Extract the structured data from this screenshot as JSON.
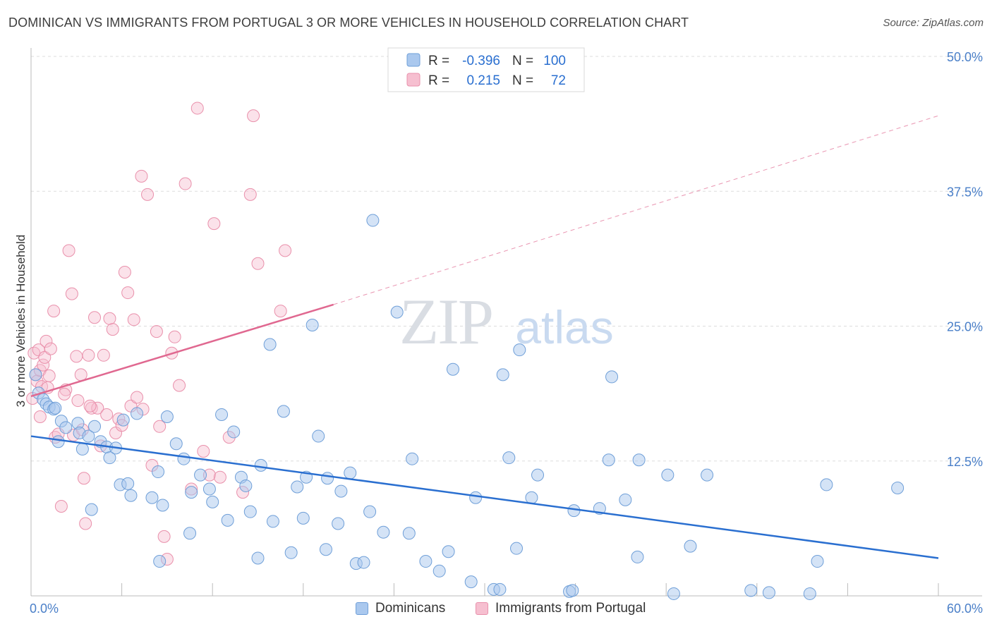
{
  "title": "DOMINICAN VS IMMIGRANTS FROM PORTUGAL 3 OR MORE VEHICLES IN HOUSEHOLD CORRELATION CHART",
  "source": "Source: ZipAtlas.com",
  "colors": {
    "blue_fill": "#aac8ee",
    "blue_stroke": "#6f9fd8",
    "blue_line": "#2a6fd0",
    "pink_fill": "#f6bfd0",
    "pink_stroke": "#e990ab",
    "pink_line": "#e06890",
    "axis_label": "#4a7fc8",
    "grid": "#dddddd"
  },
  "legend": {
    "r_label": "R =",
    "n_label": "N =",
    "rows": [
      {
        "series": "Dominicans",
        "r": "-0.396",
        "n": "100"
      },
      {
        "series": "Immigrants from Portugal",
        "r": "0.215",
        "n": "72"
      }
    ]
  },
  "watermark": {
    "zip": "ZIP",
    "atlas": "atlas"
  },
  "chart_data": {
    "type": "scatter",
    "title": "DOMINICAN VS IMMIGRANTS FROM PORTUGAL 3 OR MORE VEHICLES IN HOUSEHOLD CORRELATION CHART",
    "xlabel": "",
    "ylabel": "3 or more Vehicles in Household",
    "xlim": [
      0,
      60
    ],
    "ylim": [
      0,
      50
    ],
    "x_tick_labels": [
      "0.0%",
      "60.0%"
    ],
    "y_ticks": [
      12.5,
      25.0,
      37.5,
      50.0
    ],
    "y_tick_labels": [
      "12.5%",
      "25.0%",
      "37.5%",
      "50.0%"
    ],
    "series": [
      {
        "name": "Dominicans",
        "trend": {
          "x": [
            0,
            60
          ],
          "y": [
            14.8,
            3.5
          ],
          "style": "solid"
        },
        "points": [
          [
            0.3,
            20.5
          ],
          [
            0.5,
            18.8
          ],
          [
            0.8,
            18.2
          ],
          [
            1.0,
            17.8
          ],
          [
            1.2,
            17.5
          ],
          [
            1.5,
            17.3
          ],
          [
            1.6,
            17.4
          ],
          [
            1.8,
            14.3
          ],
          [
            2.0,
            16.2
          ],
          [
            2.3,
            15.6
          ],
          [
            3.1,
            16.0
          ],
          [
            3.2,
            15.1
          ],
          [
            3.4,
            13.6
          ],
          [
            3.8,
            14.8
          ],
          [
            4.2,
            15.7
          ],
          [
            4.6,
            14.3
          ],
          [
            5.0,
            13.8
          ],
          [
            5.2,
            12.8
          ],
          [
            5.6,
            13.7
          ],
          [
            5.9,
            10.3
          ],
          [
            6.1,
            16.3
          ],
          [
            6.4,
            10.4
          ],
          [
            6.6,
            9.3
          ],
          [
            7.0,
            16.9
          ],
          [
            8.0,
            9.1
          ],
          [
            8.4,
            11.5
          ],
          [
            8.7,
            8.4
          ],
          [
            9.0,
            16.6
          ],
          [
            9.6,
            14.1
          ],
          [
            10.1,
            12.7
          ],
          [
            10.6,
            9.6
          ],
          [
            11.2,
            11.2
          ],
          [
            11.8,
            9.9
          ],
          [
            12.6,
            16.8
          ],
          [
            13.4,
            15.2
          ],
          [
            13.9,
            11.0
          ],
          [
            14.2,
            10.2
          ],
          [
            15.2,
            12.1
          ],
          [
            15.8,
            23.3
          ],
          [
            16.7,
            17.1
          ],
          [
            17.6,
            10.1
          ],
          [
            18.2,
            11.0
          ],
          [
            18.6,
            25.1
          ],
          [
            19.0,
            14.8
          ],
          [
            19.6,
            10.9
          ],
          [
            20.5,
            9.7
          ],
          [
            21.1,
            11.4
          ],
          [
            22.4,
            7.8
          ],
          [
            22.6,
            34.8
          ],
          [
            23.3,
            5.9
          ],
          [
            24.2,
            26.3
          ],
          [
            25.2,
            12.7
          ],
          [
            26.1,
            3.2
          ],
          [
            27.6,
            4.1
          ],
          [
            27.9,
            21.0
          ],
          [
            29.1,
            1.3
          ],
          [
            29.4,
            9.1
          ],
          [
            30.6,
            0.6
          ],
          [
            31.0,
            0.6
          ],
          [
            31.2,
            20.5
          ],
          [
            31.6,
            12.8
          ],
          [
            32.1,
            4.4
          ],
          [
            32.3,
            22.8
          ],
          [
            33.1,
            9.1
          ],
          [
            33.5,
            11.2
          ],
          [
            35.6,
            0.4
          ],
          [
            35.8,
            0.5
          ],
          [
            35.9,
            7.9
          ],
          [
            37.6,
            8.1
          ],
          [
            38.2,
            12.6
          ],
          [
            38.4,
            20.3
          ],
          [
            39.3,
            8.9
          ],
          [
            40.1,
            3.6
          ],
          [
            40.2,
            12.6
          ],
          [
            42.1,
            11.2
          ],
          [
            42.5,
            0.2
          ],
          [
            43.6,
            4.6
          ],
          [
            44.7,
            11.2
          ],
          [
            47.6,
            0.5
          ],
          [
            48.8,
            0.3
          ],
          [
            51.5,
            0.2
          ],
          [
            52.0,
            3.2
          ],
          [
            52.6,
            10.3
          ],
          [
            57.3,
            10.0
          ],
          [
            4.0,
            8.0
          ],
          [
            10.5,
            5.8
          ],
          [
            13.0,
            7.0
          ],
          [
            14.5,
            7.8
          ],
          [
            16.0,
            6.9
          ],
          [
            17.2,
            4.0
          ],
          [
            18.0,
            7.2
          ],
          [
            19.5,
            4.3
          ],
          [
            20.3,
            6.7
          ],
          [
            21.5,
            3.0
          ],
          [
            22.0,
            3.1
          ],
          [
            25.0,
            5.8
          ],
          [
            27.0,
            2.3
          ],
          [
            8.5,
            3.2
          ],
          [
            12.0,
            8.7
          ],
          [
            15.0,
            3.5
          ]
        ]
      },
      {
        "name": "Immigrants from Portugal",
        "trend": {
          "x": [
            0,
            20
          ],
          "y": [
            18.5,
            27.0
          ],
          "x_dashed": [
            20,
            60
          ],
          "y_dashed": [
            27.0,
            44.5
          ],
          "style": "solid+dashed"
        },
        "points": [
          [
            0.1,
            18.3
          ],
          [
            0.2,
            22.5
          ],
          [
            0.3,
            20.5
          ],
          [
            0.4,
            19.9
          ],
          [
            0.5,
            22.8
          ],
          [
            0.6,
            20.9
          ],
          [
            0.7,
            19.4
          ],
          [
            0.8,
            21.4
          ],
          [
            0.9,
            22.1
          ],
          [
            1.0,
            23.6
          ],
          [
            1.2,
            20.4
          ],
          [
            1.3,
            22.9
          ],
          [
            1.5,
            26.4
          ],
          [
            1.6,
            14.7
          ],
          [
            1.8,
            15.0
          ],
          [
            2.0,
            8.3
          ],
          [
            2.3,
            19.1
          ],
          [
            2.5,
            32.0
          ],
          [
            2.7,
            28.0
          ],
          [
            2.8,
            14.9
          ],
          [
            3.0,
            22.2
          ],
          [
            3.1,
            18.1
          ],
          [
            3.3,
            20.5
          ],
          [
            3.4,
            15.4
          ],
          [
            3.5,
            10.9
          ],
          [
            3.6,
            6.7
          ],
          [
            3.8,
            22.3
          ],
          [
            4.0,
            17.4
          ],
          [
            4.2,
            25.8
          ],
          [
            4.4,
            17.4
          ],
          [
            4.6,
            13.9
          ],
          [
            4.8,
            22.3
          ],
          [
            5.0,
            16.8
          ],
          [
            5.2,
            25.7
          ],
          [
            5.4,
            24.7
          ],
          [
            5.6,
            15.1
          ],
          [
            5.8,
            16.4
          ],
          [
            6.0,
            15.8
          ],
          [
            6.2,
            30.0
          ],
          [
            6.4,
            28.1
          ],
          [
            6.6,
            17.6
          ],
          [
            6.8,
            25.6
          ],
          [
            7.0,
            18.4
          ],
          [
            7.3,
            38.9
          ],
          [
            7.4,
            17.3
          ],
          [
            7.7,
            37.2
          ],
          [
            8.0,
            12.1
          ],
          [
            8.3,
            24.5
          ],
          [
            8.5,
            15.7
          ],
          [
            8.8,
            5.5
          ],
          [
            9.0,
            3.4
          ],
          [
            9.3,
            22.5
          ],
          [
            9.5,
            24.0
          ],
          [
            9.8,
            19.5
          ],
          [
            10.2,
            38.2
          ],
          [
            10.6,
            9.9
          ],
          [
            11.0,
            45.2
          ],
          [
            11.4,
            13.4
          ],
          [
            11.8,
            11.2
          ],
          [
            12.1,
            34.5
          ],
          [
            12.5,
            11.0
          ],
          [
            13.1,
            14.7
          ],
          [
            14.0,
            9.6
          ],
          [
            14.5,
            37.2
          ],
          [
            14.7,
            44.5
          ],
          [
            15.0,
            30.8
          ],
          [
            16.5,
            26.4
          ],
          [
            16.8,
            32.0
          ],
          [
            0.6,
            16.6
          ],
          [
            1.1,
            19.3
          ],
          [
            2.2,
            18.7
          ],
          [
            3.9,
            17.6
          ]
        ]
      }
    ]
  }
}
